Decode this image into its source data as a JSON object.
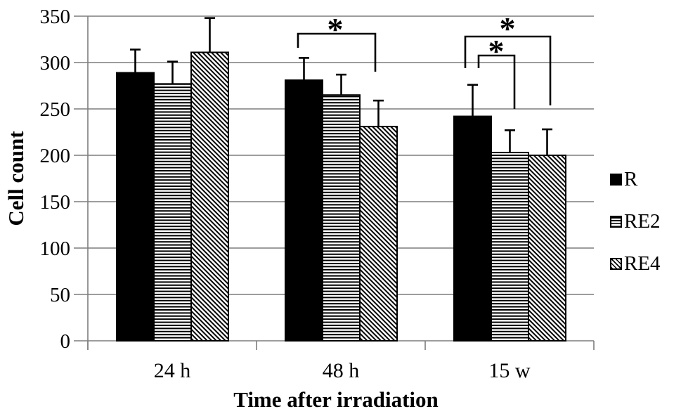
{
  "chart_data": {
    "type": "bar",
    "title": "",
    "xlabel": "Time after irradiation",
    "ylabel": "Cell count",
    "categories": [
      "24 h",
      "48 h",
      "15 w"
    ],
    "series": [
      {
        "name": "R",
        "pattern": "solid",
        "values": [
          289,
          281,
          242
        ],
        "errors_upper": [
          25,
          24,
          34
        ]
      },
      {
        "name": "RE2",
        "pattern": "horizontal-stripes",
        "values": [
          277,
          265,
          203
        ],
        "errors_upper": [
          24,
          22,
          24
        ]
      },
      {
        "name": "RE4",
        "pattern": "diagonal-stripes",
        "values": [
          311,
          231,
          200
        ],
        "errors_upper": [
          37,
          28,
          28
        ]
      }
    ],
    "ylim": [
      0,
      350
    ],
    "yticks": [
      0,
      50,
      100,
      150,
      200,
      250,
      300,
      350
    ],
    "grid": true,
    "legend_position": "right",
    "significance": [
      {
        "category": "48 h",
        "between": [
          "R",
          "RE4"
        ],
        "label": "*"
      },
      {
        "category": "15 w",
        "between": [
          "R",
          "RE4"
        ],
        "label": "*"
      },
      {
        "category": "15 w",
        "between": [
          "R",
          "RE2"
        ],
        "label": "*"
      }
    ]
  },
  "colors": {
    "bar_fill": "#000000",
    "grid": "#7d7d7d",
    "background": "#ffffff",
    "text": "#000000"
  }
}
